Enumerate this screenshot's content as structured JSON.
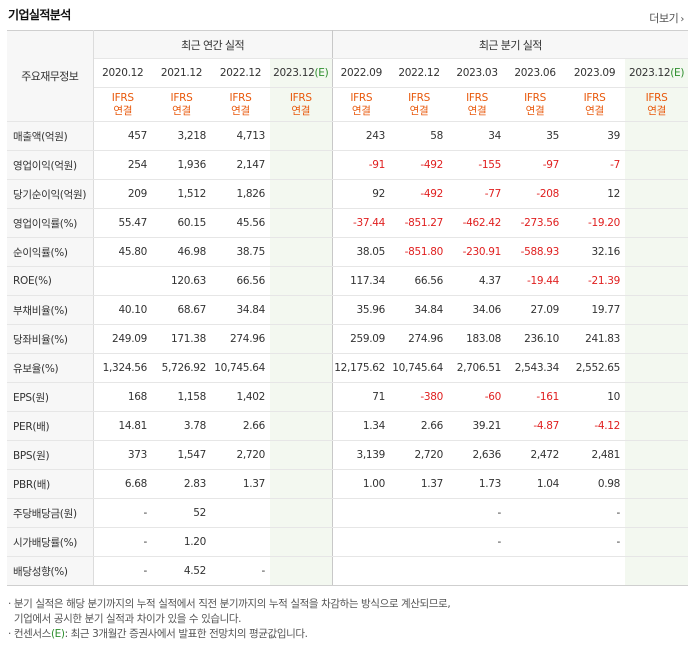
{
  "header": {
    "title": "기업실적분석",
    "more_label": "더보기"
  },
  "table": {
    "row_header_label": "주요재무정보",
    "group_annual": "최근 연간 실적",
    "group_quarter": "최근 분기 실적",
    "annual_dates": [
      "2020.12",
      "2021.12",
      "2022.12"
    ],
    "annual_est_date": "2023.12",
    "quarter_dates": [
      "2022.09",
      "2022.12",
      "2023.03",
      "2023.06",
      "2023.09"
    ],
    "quarter_est_date": "2023.12",
    "est_marker": "(E)",
    "ifrs_line1": "IFRS",
    "ifrs_line2": "연결",
    "rows": [
      {
        "label": "매출액(억원)",
        "values": [
          "457",
          "3,218",
          "4,713",
          "",
          "243",
          "58",
          "34",
          "35",
          "39",
          ""
        ]
      },
      {
        "label": "영업이익(억원)",
        "values": [
          "254",
          "1,936",
          "2,147",
          "",
          "-91",
          "-492",
          "-155",
          "-97",
          "-7",
          ""
        ]
      },
      {
        "label": "당기순이익(억원)",
        "values": [
          "209",
          "1,512",
          "1,826",
          "",
          "92",
          "-492",
          "-77",
          "-208",
          "12",
          ""
        ]
      },
      {
        "label": "영업이익률(%)",
        "values": [
          "55.47",
          "60.15",
          "45.56",
          "",
          "-37.44",
          "-851.27",
          "-462.42",
          "-273.56",
          "-19.20",
          ""
        ]
      },
      {
        "label": "순이익률(%)",
        "values": [
          "45.80",
          "46.98",
          "38.75",
          "",
          "38.05",
          "-851.80",
          "-230.91",
          "-588.93",
          "32.16",
          ""
        ]
      },
      {
        "label": "ROE(%)",
        "values": [
          "",
          "120.63",
          "66.56",
          "",
          "117.34",
          "66.56",
          "4.37",
          "-19.44",
          "-21.39",
          ""
        ]
      },
      {
        "label": "부채비율(%)",
        "values": [
          "40.10",
          "68.67",
          "34.84",
          "",
          "35.96",
          "34.84",
          "34.06",
          "27.09",
          "19.77",
          ""
        ]
      },
      {
        "label": "당좌비율(%)",
        "values": [
          "249.09",
          "171.38",
          "274.96",
          "",
          "259.09",
          "274.96",
          "183.08",
          "236.10",
          "241.83",
          ""
        ]
      },
      {
        "label": "유보율(%)",
        "values": [
          "1,324.56",
          "5,726.92",
          "10,745.64",
          "",
          "12,175.62",
          "10,745.64",
          "2,706.51",
          "2,543.34",
          "2,552.65",
          ""
        ]
      },
      {
        "label": "EPS(원)",
        "values": [
          "168",
          "1,158",
          "1,402",
          "",
          "71",
          "-380",
          "-60",
          "-161",
          "10",
          ""
        ]
      },
      {
        "label": "PER(배)",
        "values": [
          "14.81",
          "3.78",
          "2.66",
          "",
          "1.34",
          "2.66",
          "39.21",
          "-4.87",
          "-4.12",
          ""
        ]
      },
      {
        "label": "BPS(원)",
        "values": [
          "373",
          "1,547",
          "2,720",
          "",
          "3,139",
          "2,720",
          "2,636",
          "2,472",
          "2,481",
          ""
        ]
      },
      {
        "label": "PBR(배)",
        "values": [
          "6.68",
          "2.83",
          "1.37",
          "",
          "1.00",
          "1.37",
          "1.73",
          "1.04",
          "0.98",
          ""
        ]
      },
      {
        "label": "주당배당금(원)",
        "values": [
          "-",
          "52",
          "",
          "",
          "",
          "",
          "-",
          "",
          "-",
          ""
        ]
      },
      {
        "label": "시가배당률(%)",
        "values": [
          "-",
          "1.20",
          "",
          "",
          "",
          "",
          "-",
          "",
          "-",
          ""
        ]
      },
      {
        "label": "배당성향(%)",
        "values": [
          "-",
          "4.52",
          "-",
          "",
          "",
          "",
          "",
          "",
          "",
          ""
        ]
      }
    ]
  },
  "notes": {
    "line1": "분기 실적은 해당 분기까지의 누적 실적에서 직전 분기까지의 누적 실적을 차감하는 방식으로 계산되므로,",
    "line2": "기업에서 공시한 분기 실적과 차이가 있을 수 있습니다.",
    "line3_prefix": "컨센서스",
    "line3_marker": "(E)",
    "line3_suffix": ": 최근 3개월간 증권사에서 발표한 전망치의 평균값입니다."
  },
  "colors": {
    "negative": "#e02020",
    "ifrs": "#e8590c",
    "estimate_marker": "#2f8f2f",
    "estimate_bg": "#f3f8f0"
  }
}
